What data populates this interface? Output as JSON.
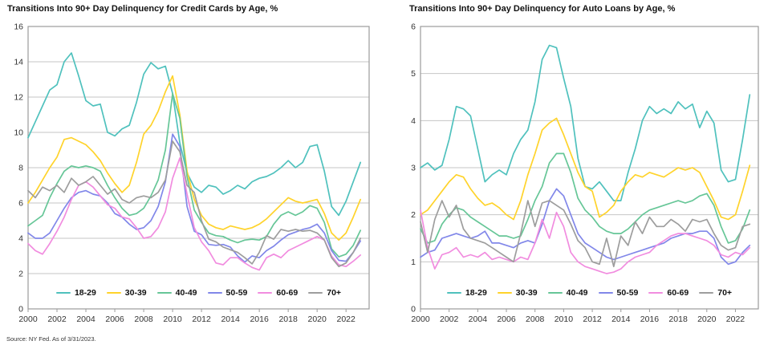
{
  "source_note": "Source: NY Fed. As of 3/31/2023.",
  "colors": {
    "age_18_29": "#4FC1BD",
    "age_30_39": "#FFD32B",
    "age_40_49": "#66C697",
    "age_50_59": "#8187E9",
    "age_60_69": "#F18CDF",
    "age_70_plus": "#9D9D9D",
    "gridline": "#C6C6C6",
    "plot_border": "#9B9B9B",
    "tick_label": "#333333"
  },
  "chart_data": [
    {
      "type": "line",
      "title": "Transitions Into 90+ Day Delinquency for Credit Cards by Age, %",
      "x_start": 2000,
      "x_step": 0.5,
      "x_end": 2023,
      "xticks": [
        "2000",
        "2002",
        "2004",
        "2006",
        "2008",
        "2010",
        "2012",
        "2014",
        "2016",
        "2018",
        "2020",
        "2022"
      ],
      "yticks": [
        "0",
        "2",
        "4",
        "6",
        "8",
        "10",
        "12",
        "14",
        "16"
      ],
      "ylim": [
        0,
        16
      ],
      "grid": "horizontal",
      "legend_position": "bottom-inside",
      "series": [
        {
          "name": "18-29",
          "color": "#4FC1BD",
          "values": [
            9.7,
            10.6,
            11.5,
            12.4,
            12.7,
            14.0,
            14.5,
            13.2,
            11.8,
            11.5,
            11.6,
            10.0,
            9.8,
            10.2,
            10.4,
            11.7,
            13.3,
            13.95,
            13.6,
            13.75,
            12.2,
            9.4,
            7.7,
            6.9,
            6.6,
            7.0,
            6.9,
            6.5,
            6.7,
            7.0,
            6.8,
            7.2,
            7.4,
            7.5,
            7.7,
            8.0,
            8.4,
            8.0,
            8.3,
            9.2,
            9.3,
            7.8,
            5.8,
            5.3,
            6.1,
            7.2,
            8.3
          ]
        },
        {
          "name": "30-39",
          "color": "#FFD32B",
          "values": [
            6.0,
            6.6,
            7.3,
            8.0,
            8.6,
            9.6,
            9.7,
            9.5,
            9.3,
            8.9,
            8.4,
            7.7,
            7.1,
            6.6,
            7.0,
            8.3,
            9.9,
            10.4,
            11.2,
            12.3,
            13.2,
            11.0,
            7.8,
            6.2,
            5.3,
            4.8,
            4.6,
            4.5,
            4.7,
            4.6,
            4.5,
            4.6,
            4.8,
            5.1,
            5.5,
            5.9,
            6.3,
            6.1,
            6.0,
            6.1,
            6.2,
            5.4,
            4.3,
            3.9,
            4.3,
            5.2,
            6.2
          ]
        },
        {
          "name": "40-49",
          "color": "#66C697",
          "values": [
            4.7,
            5.0,
            5.3,
            6.3,
            7.1,
            7.8,
            8.1,
            8.0,
            8.1,
            8.0,
            7.8,
            7.0,
            6.3,
            5.7,
            5.3,
            5.4,
            5.7,
            6.4,
            7.3,
            9.0,
            12.2,
            10.8,
            7.5,
            5.6,
            4.9,
            4.3,
            4.15,
            4.1,
            3.9,
            3.75,
            3.9,
            3.95,
            3.9,
            4.1,
            4.8,
            5.3,
            5.5,
            5.3,
            5.5,
            5.85,
            5.7,
            4.9,
            3.4,
            2.95,
            3.1,
            3.6,
            4.45
          ]
        },
        {
          "name": "50-59",
          "color": "#8187E9",
          "values": [
            4.3,
            4.0,
            4.0,
            4.3,
            5.0,
            5.7,
            6.3,
            6.6,
            6.7,
            6.5,
            6.4,
            6.0,
            5.4,
            5.2,
            4.8,
            4.5,
            4.6,
            5.0,
            5.8,
            7.2,
            9.9,
            9.2,
            5.8,
            4.4,
            4.2,
            3.65,
            3.6,
            3.65,
            3.5,
            3.0,
            2.65,
            3.0,
            2.9,
            3.3,
            3.55,
            3.9,
            4.2,
            4.35,
            4.5,
            4.6,
            4.8,
            4.3,
            3.3,
            2.75,
            2.7,
            3.2,
            3.85
          ]
        },
        {
          "name": "60-69",
          "color": "#F18CDF",
          "values": [
            3.7,
            3.3,
            3.1,
            3.7,
            4.4,
            5.2,
            6.2,
            7.0,
            7.2,
            6.9,
            6.4,
            5.9,
            5.7,
            5.2,
            5.1,
            4.6,
            4.0,
            4.1,
            4.6,
            5.5,
            7.4,
            8.55,
            6.5,
            4.6,
            3.8,
            3.3,
            2.6,
            2.5,
            2.9,
            2.9,
            2.6,
            2.35,
            2.2,
            2.9,
            3.1,
            2.9,
            3.3,
            3.5,
            3.7,
            3.9,
            4.1,
            3.9,
            3.0,
            2.5,
            2.4,
            2.7,
            3.05
          ]
        },
        {
          "name": "70+",
          "color": "#9D9D9D",
          "values": [
            6.7,
            6.3,
            6.9,
            6.7,
            7.0,
            6.6,
            7.4,
            7.0,
            7.2,
            7.5,
            7.0,
            6.5,
            6.8,
            6.2,
            6.0,
            6.3,
            6.4,
            6.3,
            6.6,
            7.3,
            9.5,
            8.9,
            7.0,
            6.6,
            5.0,
            3.95,
            3.8,
            3.5,
            3.35,
            3.2,
            2.9,
            2.55,
            3.2,
            4.15,
            3.95,
            4.5,
            4.4,
            4.5,
            4.4,
            4.45,
            4.3,
            3.9,
            2.9,
            2.4,
            2.6,
            3.2,
            4.0
          ]
        }
      ]
    },
    {
      "type": "line",
      "title": "Transitions Into 90+ Day Delinquency for Auto Loans by Age, %",
      "x_start": 2000,
      "x_step": 0.5,
      "x_end": 2023,
      "xticks": [
        "2000",
        "2002",
        "2004",
        "2006",
        "2008",
        "2010",
        "2012",
        "2014",
        "2016",
        "2018",
        "2020",
        "2022"
      ],
      "yticks": [
        "0",
        "1",
        "2",
        "3",
        "4",
        "5",
        "6"
      ],
      "ylim": [
        0,
        6
      ],
      "grid": "horizontal",
      "legend_position": "bottom-inside",
      "series": [
        {
          "name": "18-29",
          "color": "#4FC1BD",
          "values": [
            3.0,
            3.1,
            2.95,
            3.05,
            3.6,
            4.3,
            4.25,
            4.1,
            3.4,
            2.7,
            2.85,
            2.95,
            2.85,
            3.3,
            3.6,
            3.8,
            4.4,
            5.3,
            5.6,
            5.55,
            4.9,
            4.3,
            3.2,
            2.6,
            2.55,
            2.7,
            2.5,
            2.3,
            2.3,
            2.9,
            3.4,
            4.0,
            4.3,
            4.15,
            4.25,
            4.15,
            4.4,
            4.25,
            4.35,
            3.85,
            4.2,
            3.95,
            2.95,
            2.7,
            2.75,
            3.6,
            4.55
          ]
        },
        {
          "name": "30-39",
          "color": "#FFD32B",
          "values": [
            2.0,
            2.1,
            2.3,
            2.5,
            2.7,
            2.85,
            2.8,
            2.55,
            2.35,
            2.2,
            2.25,
            2.15,
            2.0,
            1.9,
            2.3,
            2.85,
            3.3,
            3.8,
            3.95,
            4.05,
            3.7,
            3.3,
            2.9,
            2.6,
            2.5,
            1.95,
            2.05,
            2.2,
            2.5,
            2.7,
            2.85,
            2.8,
            2.9,
            2.85,
            2.8,
            2.9,
            3.0,
            2.95,
            3.0,
            2.9,
            2.6,
            2.3,
            1.95,
            1.9,
            2.0,
            2.5,
            3.05
          ]
        },
        {
          "name": "40-49",
          "color": "#66C697",
          "values": [
            1.7,
            1.4,
            1.45,
            1.8,
            2.0,
            2.15,
            2.1,
            1.95,
            1.85,
            1.75,
            1.65,
            1.55,
            1.55,
            1.5,
            1.55,
            1.9,
            2.3,
            2.6,
            3.1,
            3.3,
            3.3,
            2.9,
            2.35,
            2.1,
            1.95,
            1.75,
            1.65,
            1.6,
            1.6,
            1.7,
            1.85,
            2.0,
            2.1,
            2.15,
            2.2,
            2.25,
            2.3,
            2.25,
            2.3,
            2.4,
            2.45,
            2.2,
            1.75,
            1.4,
            1.45,
            1.7,
            2.1
          ]
        },
        {
          "name": "50-59",
          "color": "#8187E9",
          "values": [
            1.1,
            1.2,
            1.25,
            1.5,
            1.55,
            1.6,
            1.55,
            1.5,
            1.55,
            1.65,
            1.4,
            1.4,
            1.35,
            1.3,
            1.4,
            1.45,
            1.4,
            1.8,
            2.3,
            2.55,
            2.4,
            2.0,
            1.6,
            1.4,
            1.3,
            1.2,
            1.1,
            1.05,
            1.1,
            1.15,
            1.2,
            1.25,
            1.3,
            1.35,
            1.4,
            1.5,
            1.55,
            1.6,
            1.6,
            1.65,
            1.65,
            1.5,
            1.1,
            0.95,
            1.0,
            1.2,
            1.35
          ]
        },
        {
          "name": "60-69",
          "color": "#F18CDF",
          "values": [
            2.1,
            1.3,
            0.85,
            1.15,
            1.2,
            1.3,
            1.1,
            1.15,
            1.1,
            1.2,
            1.05,
            1.1,
            1.05,
            1.0,
            1.1,
            1.05,
            1.4,
            1.9,
            1.5,
            2.05,
            1.75,
            1.2,
            1.0,
            0.9,
            0.85,
            0.8,
            0.75,
            0.78,
            0.85,
            1.0,
            1.1,
            1.15,
            1.2,
            1.35,
            1.45,
            1.55,
            1.6,
            1.6,
            1.55,
            1.5,
            1.45,
            1.35,
            1.15,
            1.1,
            1.2,
            1.15,
            1.3
          ]
        },
        {
          "name": "70+",
          "color": "#9D9D9D",
          "values": [
            1.85,
            1.2,
            1.9,
            2.3,
            1.95,
            2.2,
            1.7,
            1.5,
            1.45,
            1.4,
            1.3,
            1.2,
            1.1,
            1.0,
            1.6,
            2.3,
            1.75,
            2.25,
            2.3,
            2.2,
            2.1,
            1.8,
            1.45,
            1.3,
            1.0,
            0.95,
            1.5,
            0.9,
            1.55,
            1.35,
            1.85,
            1.6,
            1.95,
            1.75,
            1.75,
            1.9,
            1.8,
            1.65,
            1.9,
            1.85,
            1.9,
            1.6,
            1.35,
            1.25,
            1.3,
            1.75,
            1.8
          ]
        }
      ]
    }
  ]
}
